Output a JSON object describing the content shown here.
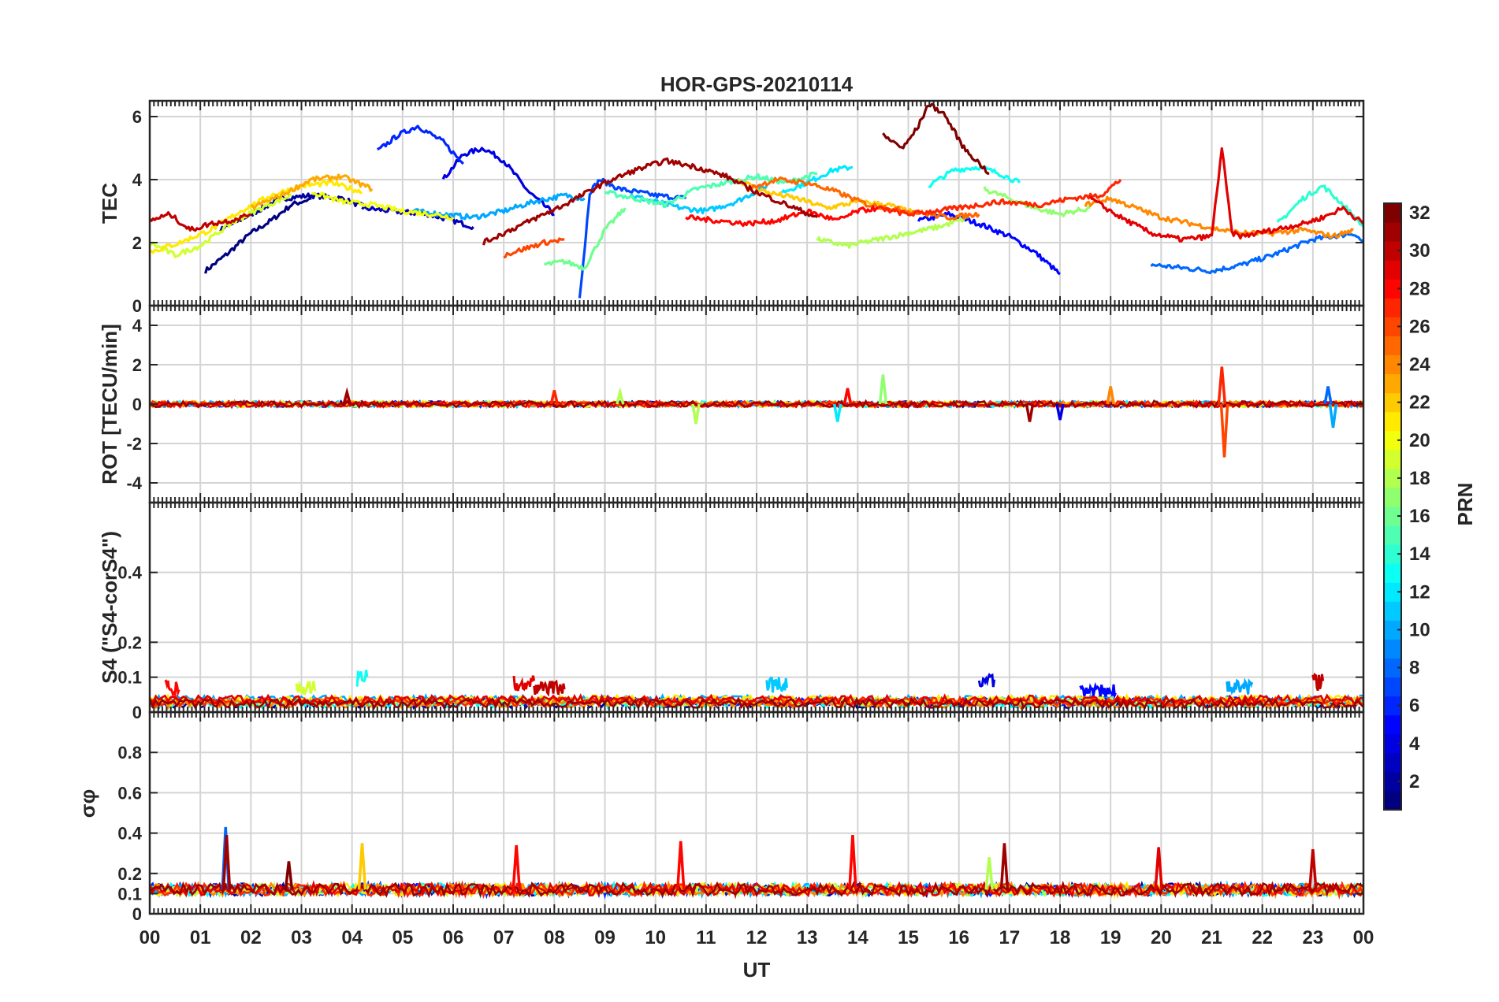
{
  "figure": {
    "title": "HOR-GPS-20210114",
    "xlabel": "UT",
    "x_ticks": [
      "00",
      "01",
      "02",
      "03",
      "04",
      "05",
      "06",
      "07",
      "08",
      "09",
      "10",
      "11",
      "12",
      "13",
      "14",
      "15",
      "16",
      "17",
      "18",
      "19",
      "20",
      "21",
      "22",
      "23",
      "00"
    ]
  },
  "colorbar": {
    "label": "PRN",
    "range": [
      1,
      32
    ],
    "ticks": [
      "2",
      "4",
      "6",
      "8",
      "10",
      "12",
      "14",
      "16",
      "18",
      "20",
      "22",
      "24",
      "26",
      "28",
      "30",
      "32"
    ],
    "colormap": "jet"
  },
  "chart_data": [
    {
      "type": "line",
      "panel": "TEC",
      "ylabel": "TEC",
      "ylim": [
        0,
        6.5
      ],
      "yticks": [
        "0",
        "2",
        "4",
        "6"
      ],
      "xlim": [
        0,
        24
      ],
      "grid": true,
      "series": [
        {
          "prn": 1,
          "x": [
            1.1,
            1.5,
            2.0,
            2.4,
            2.8,
            3.2
          ],
          "values": [
            1.1,
            1.6,
            2.3,
            2.7,
            3.2,
            3.4
          ]
        },
        {
          "prn": 2,
          "x": [
            1.4,
            2.0,
            2.6,
            3.2,
            3.8,
            4.3
          ],
          "values": [
            2.4,
            2.9,
            3.4,
            3.5,
            3.4,
            3.1
          ]
        },
        {
          "prn": 3,
          "x": [
            4.2,
            4.8,
            5.5,
            6.0,
            6.4
          ],
          "values": [
            3.1,
            3.0,
            2.9,
            2.7,
            2.5
          ]
        },
        {
          "prn": 4,
          "x": [
            5.8,
            6.2,
            6.6,
            7.0,
            7.5,
            8.0
          ],
          "values": [
            4.0,
            4.8,
            5.0,
            4.6,
            3.6,
            2.9
          ]
        },
        {
          "prn": 5,
          "x": [
            15.2,
            15.8,
            16.4,
            17.0,
            17.5,
            18.0
          ],
          "values": [
            2.7,
            2.9,
            2.6,
            2.2,
            1.7,
            1.0
          ]
        },
        {
          "prn": 6,
          "x": [
            4.5,
            4.9,
            5.3,
            5.8,
            6.2
          ],
          "values": [
            4.9,
            5.4,
            5.7,
            5.2,
            4.5
          ]
        },
        {
          "prn": 7,
          "x": [
            8.5,
            8.6,
            8.7,
            8.9,
            9.3,
            10.0,
            10.6
          ],
          "values": [
            0.3,
            1.8,
            3.6,
            4.0,
            3.7,
            3.5,
            3.4
          ]
        },
        {
          "prn": 8,
          "x": [
            19.8,
            20.4,
            21.0,
            21.6,
            22.2,
            23.0,
            23.8,
            24.0
          ],
          "values": [
            1.3,
            1.2,
            1.1,
            1.3,
            1.6,
            2.1,
            2.3,
            2.0
          ]
        },
        {
          "prn": 10,
          "x": [
            5.2,
            5.8,
            6.4,
            7.0,
            7.6,
            8.2,
            8.6
          ],
          "values": [
            3.0,
            2.9,
            2.8,
            3.0,
            3.3,
            3.5,
            3.4
          ]
        },
        {
          "prn": 11,
          "x": [
            9.5,
            10.0,
            10.5,
            11.0,
            11.6,
            12.2
          ],
          "values": [
            3.5,
            3.3,
            3.1,
            3.0,
            3.3,
            3.8
          ]
        },
        {
          "prn": 12,
          "x": [
            12.5,
            13.0,
            13.5,
            13.9
          ],
          "values": [
            3.6,
            3.9,
            4.3,
            4.4
          ]
        },
        {
          "prn": 13,
          "x": [
            15.4,
            15.9,
            16.4,
            16.8,
            17.2
          ],
          "values": [
            3.8,
            4.3,
            4.4,
            4.2,
            3.9
          ]
        },
        {
          "prn": 14,
          "x": [
            22.3,
            22.8,
            23.2,
            23.6,
            24.0
          ],
          "values": [
            2.6,
            3.4,
            3.8,
            3.2,
            2.5
          ]
        },
        {
          "prn": 15,
          "x": [
            9.0,
            9.6,
            10.2,
            10.8,
            11.4,
            12.0,
            12.6,
            13.2
          ],
          "values": [
            3.6,
            3.4,
            3.2,
            3.7,
            3.9,
            4.1,
            3.9,
            4.2
          ]
        },
        {
          "prn": 16,
          "x": [
            7.8,
            8.2,
            8.6,
            9.0,
            9.4
          ],
          "values": [
            1.3,
            1.4,
            1.2,
            2.4,
            3.1
          ]
        },
        {
          "prn": 17,
          "x": [
            16.5,
            17.0,
            17.5,
            18.0,
            18.6
          ],
          "values": [
            3.7,
            3.4,
            3.1,
            2.9,
            3.1
          ]
        },
        {
          "prn": 18,
          "x": [
            13.2,
            13.8,
            14.4,
            15.0,
            15.6,
            16.2
          ],
          "values": [
            2.1,
            1.9,
            2.1,
            2.3,
            2.5,
            2.8
          ]
        },
        {
          "prn": 19,
          "x": [
            0.0,
            0.5,
            1.0,
            1.6,
            2.2,
            2.8
          ],
          "values": [
            2.0,
            1.6,
            1.9,
            2.6,
            3.1,
            3.5
          ]
        },
        {
          "prn": 20,
          "x": [
            3.2,
            3.8,
            4.4,
            5.0,
            5.6,
            6.0
          ],
          "values": [
            3.6,
            3.3,
            3.2,
            3.0,
            2.9,
            2.8
          ]
        },
        {
          "prn": 21,
          "x": [
            0.0,
            0.6,
            1.2,
            1.8,
            2.4,
            3.0,
            3.6,
            4.2
          ],
          "values": [
            1.7,
            2.0,
            2.4,
            3.0,
            3.5,
            3.8,
            3.9,
            3.6
          ]
        },
        {
          "prn": 22,
          "x": [
            11.6,
            12.2,
            12.8,
            13.4,
            14.0,
            14.6,
            15.2
          ],
          "values": [
            4.0,
            3.6,
            3.4,
            3.1,
            3.3,
            3.2,
            2.9
          ]
        },
        {
          "prn": 23,
          "x": [
            2.0,
            2.6,
            3.2,
            3.8,
            4.4
          ],
          "values": [
            3.1,
            3.5,
            4.0,
            4.1,
            3.7
          ]
        },
        {
          "prn": 24,
          "x": [
            18.5,
            19.0,
            19.5,
            20.0,
            20.6,
            21.2,
            21.6,
            22.2,
            22.8,
            23.4,
            23.8
          ],
          "values": [
            3.2,
            3.4,
            3.1,
            2.8,
            2.6,
            2.4,
            2.3,
            2.3,
            2.4,
            2.2,
            2.4
          ]
        },
        {
          "prn": 25,
          "x": [
            11.8,
            12.4,
            13.0,
            13.6,
            14.2,
            15.0,
            15.8,
            16.4
          ],
          "values": [
            3.7,
            4.0,
            3.9,
            3.6,
            3.2,
            3.0,
            2.8,
            2.9
          ]
        },
        {
          "prn": 26,
          "x": [
            7.0,
            7.4,
            7.8,
            8.2
          ],
          "values": [
            1.6,
            1.8,
            2.0,
            2.1
          ]
        },
        {
          "prn": 27,
          "x": [
            14.4,
            15.0,
            16.0,
            16.8,
            17.6,
            18.2,
            18.8,
            19.2
          ],
          "values": [
            3.1,
            2.9,
            3.1,
            3.3,
            3.2,
            3.4,
            3.5,
            4.0
          ]
        },
        {
          "prn": 28,
          "x": [
            10.6,
            11.2,
            11.8,
            12.4,
            13.0,
            13.6,
            14.0,
            14.4
          ],
          "values": [
            2.8,
            2.7,
            2.6,
            2.7,
            3.0,
            2.7,
            3.0,
            3.1
          ]
        },
        {
          "prn": 29,
          "x": [
            18.6,
            19.2,
            19.8,
            20.4,
            21.0,
            21.2,
            21.4,
            21.6,
            22.2,
            22.8,
            23.2,
            23.6,
            24.0
          ],
          "values": [
            3.4,
            2.8,
            2.3,
            2.1,
            2.2,
            5.0,
            2.3,
            2.2,
            2.4,
            2.6,
            2.8,
            3.1,
            2.6
          ]
        },
        {
          "prn": 30,
          "x": [
            0.0,
            0.4,
            0.8,
            1.2,
            1.6,
            2.0
          ],
          "values": [
            2.7,
            2.9,
            2.4,
            2.6,
            2.7,
            2.9
          ]
        },
        {
          "prn": 31,
          "x": [
            6.6,
            7.4,
            8.2,
            9.0,
            9.6,
            10.2,
            10.8,
            11.4,
            12.0,
            12.6,
            13.2
          ],
          "values": [
            2.0,
            2.6,
            3.2,
            3.9,
            4.3,
            4.6,
            4.4,
            4.1,
            3.6,
            3.2,
            2.8
          ]
        },
        {
          "prn": 32,
          "x": [
            14.5,
            14.9,
            15.2,
            15.4,
            15.7,
            16.1,
            16.6
          ],
          "values": [
            5.4,
            5.0,
            5.7,
            6.4,
            6.1,
            5.0,
            4.2
          ]
        }
      ]
    },
    {
      "type": "line",
      "panel": "ROT",
      "ylabel": "ROT [TECU/min]",
      "ylim": [
        -5,
        5
      ],
      "yticks": [
        "-4",
        "-2",
        "0",
        "2",
        "4"
      ],
      "xlim": [
        0,
        24
      ],
      "grid": true,
      "baseline": 0,
      "noise_amplitude": 0.15,
      "spikes": [
        {
          "x": 3.9,
          "value": 0.6,
          "prn": 31
        },
        {
          "x": 8.0,
          "value": 0.7,
          "prn": 27
        },
        {
          "x": 9.3,
          "value": 0.6,
          "prn": 18
        },
        {
          "x": 10.8,
          "value": -1.0,
          "prn": 18
        },
        {
          "x": 13.8,
          "value": 0.8,
          "prn": 28
        },
        {
          "x": 13.6,
          "value": -0.9,
          "prn": 12
        },
        {
          "x": 14.5,
          "value": 1.5,
          "prn": 17
        },
        {
          "x": 17.4,
          "value": -0.9,
          "prn": 31
        },
        {
          "x": 18.0,
          "value": -0.8,
          "prn": 4
        },
        {
          "x": 19.0,
          "value": 0.9,
          "prn": 24
        },
        {
          "x": 21.2,
          "value": 1.9,
          "prn": 27
        },
        {
          "x": 21.25,
          "value": -2.7,
          "prn": 26
        },
        {
          "x": 23.3,
          "value": 0.9,
          "prn": 8
        },
        {
          "x": 23.4,
          "value": -1.2,
          "prn": 10
        }
      ]
    },
    {
      "type": "line",
      "panel": "S4",
      "ylabel": "S4 (\"S4-corS4\")",
      "ylim": [
        0,
        0.6
      ],
      "yticks": [
        "0",
        "0.1",
        "0.2",
        "0.4"
      ],
      "xlim": [
        0,
        24
      ],
      "grid": true,
      "baseline": 0.025,
      "noise_amplitude": 0.02,
      "bursts": [
        {
          "x0": 0.3,
          "x1": 0.6,
          "value": 0.09,
          "prn": 28
        },
        {
          "x0": 4.1,
          "x1": 4.3,
          "value": 0.13,
          "prn": 13
        },
        {
          "x0": 2.9,
          "x1": 3.3,
          "value": 0.09,
          "prn": 19
        },
        {
          "x0": 7.2,
          "x1": 7.6,
          "value": 0.11,
          "prn": 29
        },
        {
          "x0": 7.6,
          "x1": 8.2,
          "value": 0.09,
          "prn": 30
        },
        {
          "x0": 12.2,
          "x1": 12.6,
          "value": 0.1,
          "prn": 11
        },
        {
          "x0": 16.4,
          "x1": 16.7,
          "value": 0.11,
          "prn": 4
        },
        {
          "x0": 18.4,
          "x1": 19.1,
          "value": 0.08,
          "prn": 5
        },
        {
          "x0": 21.3,
          "x1": 21.8,
          "value": 0.09,
          "prn": 10
        },
        {
          "x0": 23.0,
          "x1": 23.2,
          "value": 0.11,
          "prn": 30
        }
      ]
    },
    {
      "type": "line",
      "panel": "sigma_phi",
      "ylabel": "σφ",
      "ylim": [
        0,
        1.0
      ],
      "yticks": [
        "0",
        "0.1",
        "0.2",
        "0.4",
        "0.6",
        "0.8"
      ],
      "xlim": [
        0,
        24
      ],
      "grid": true,
      "baseline": 0.12,
      "noise_amplitude": 0.03,
      "spikes": [
        {
          "x": 1.5,
          "value": 0.43,
          "prn": 8
        },
        {
          "x": 1.52,
          "value": 0.39,
          "prn": 31
        },
        {
          "x": 2.75,
          "value": 0.26,
          "prn": 32
        },
        {
          "x": 4.2,
          "value": 0.35,
          "prn": 22
        },
        {
          "x": 7.25,
          "value": 0.34,
          "prn": 28
        },
        {
          "x": 10.5,
          "value": 0.36,
          "prn": 28
        },
        {
          "x": 13.9,
          "value": 0.39,
          "prn": 28
        },
        {
          "x": 16.6,
          "value": 0.28,
          "prn": 18
        },
        {
          "x": 16.9,
          "value": 0.35,
          "prn": 31
        },
        {
          "x": 19.95,
          "value": 0.33,
          "prn": 29
        },
        {
          "x": 23.0,
          "value": 0.32,
          "prn": 30
        }
      ]
    }
  ]
}
